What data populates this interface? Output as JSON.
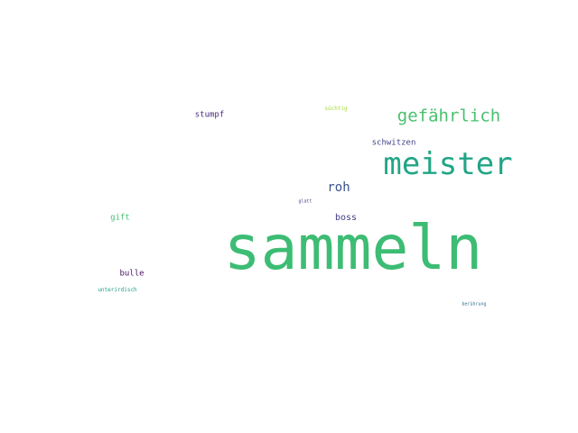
{
  "words": [
    {
      "text": "sammeln",
      "color": "#3dbc74"
    },
    {
      "text": "meister",
      "color": "#21a585"
    },
    {
      "text": "gefährlich",
      "color": "#4ac16d"
    },
    {
      "text": "roh",
      "color": "#3b528b"
    },
    {
      "text": "boss",
      "color": "#424086"
    },
    {
      "text": "stumpf",
      "color": "#482878"
    },
    {
      "text": "schwitzen",
      "color": "#414487"
    },
    {
      "text": "gift",
      "color": "#44bf70"
    },
    {
      "text": "bulle",
      "color": "#471164"
    },
    {
      "text": "süchtig",
      "color": "#a5db36"
    },
    {
      "text": "unterirdisch",
      "color": "#1fa088"
    },
    {
      "text": "glatt",
      "color": "#404387"
    },
    {
      "text": "berührung",
      "color": "#2c728e"
    }
  ]
}
